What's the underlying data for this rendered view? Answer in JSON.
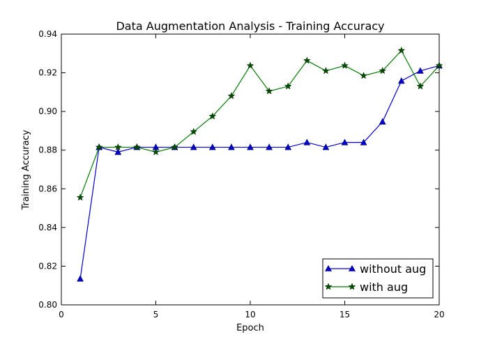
{
  "chart_data": {
    "type": "line",
    "title": "Data Augmentation Analysis - Training Accuracy",
    "xlabel": "Epoch",
    "ylabel": "Training Accuracy",
    "xlim": [
      0,
      20
    ],
    "ylim": [
      0.8,
      0.94
    ],
    "xticks": [
      0,
      5,
      10,
      15,
      20
    ],
    "xtick_labels": [
      "0",
      "5",
      "10",
      "15",
      "20"
    ],
    "yticks": [
      0.8,
      0.82,
      0.84,
      0.86,
      0.88,
      0.9,
      0.92,
      0.94
    ],
    "ytick_labels": [
      "0.80",
      "0.82",
      "0.84",
      "0.86",
      "0.88",
      "0.90",
      "0.92",
      "0.94"
    ],
    "grid": false,
    "legend_position": "bottom-right",
    "x": [
      1,
      2,
      3,
      4,
      5,
      6,
      7,
      8,
      9,
      10,
      11,
      12,
      13,
      14,
      15,
      16,
      17,
      18,
      19,
      20
    ],
    "series": [
      {
        "name": "without aug",
        "color": "#0000cc",
        "marker": "triangle",
        "values": [
          0.8135,
          0.8815,
          0.879,
          0.8815,
          0.8815,
          0.8815,
          0.8815,
          0.8815,
          0.8815,
          0.8815,
          0.8815,
          0.8815,
          0.884,
          0.8815,
          0.884,
          0.884,
          0.8947,
          0.9158,
          0.921,
          0.9237
        ]
      },
      {
        "name": "with aug",
        "color": "#007a00",
        "marker": "star",
        "values": [
          0.8555,
          0.8815,
          0.8815,
          0.8815,
          0.879,
          0.8815,
          0.8895,
          0.8975,
          0.908,
          0.9237,
          0.9105,
          0.913,
          0.9263,
          0.921,
          0.9237,
          0.9185,
          0.921,
          0.9315,
          0.913,
          0.9237
        ]
      }
    ]
  }
}
